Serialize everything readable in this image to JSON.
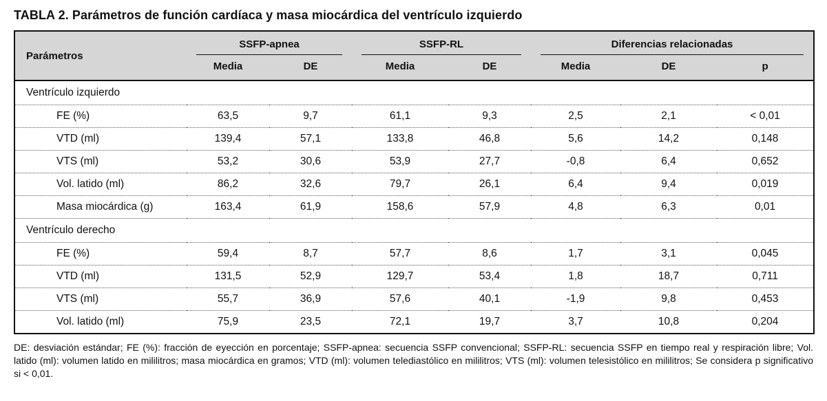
{
  "title": "TABLA 2. Parámetros de función cardíaca y masa miocárdica del ventrículo izquierdo",
  "colors": {
    "header_bg": "#d6d6d6",
    "border": "#111111",
    "text": "#111111"
  },
  "table": {
    "param_header": "Parámetros",
    "groups": [
      {
        "label": "SSFP-apnea",
        "cols": [
          "Media",
          "DE"
        ]
      },
      {
        "label": "SSFP-RL",
        "cols": [
          "Media",
          "DE"
        ]
      },
      {
        "label": "Diferencias relacionadas",
        "cols": [
          "Media",
          "DE",
          "p"
        ]
      }
    ],
    "sections": [
      {
        "label": "Ventrículo izquierdo",
        "rows": [
          {
            "param": "FE (%)",
            "values": [
              "63,5",
              "9,7",
              "61,1",
              "9,3",
              "2,5",
              "2,1",
              "< 0,01"
            ]
          },
          {
            "param": "VTD (ml)",
            "values": [
              "139,4",
              "57,1",
              "133,8",
              "46,8",
              "5,6",
              "14,2",
              "0,148"
            ]
          },
          {
            "param": "VTS (ml)",
            "values": [
              "53,2",
              "30,6",
              "53,9",
              "27,7",
              "-0,8",
              "6,4",
              "0,652"
            ]
          },
          {
            "param": "Vol. latido (ml)",
            "values": [
              "86,2",
              "32,6",
              "79,7",
              "26,1",
              "6,4",
              "9,4",
              "0,019"
            ]
          },
          {
            "param": "Masa miocárdica (g)",
            "values": [
              "163,4",
              "61,9",
              "158,6",
              "57,9",
              "4,8",
              "6,3",
              "0,01"
            ]
          }
        ]
      },
      {
        "label": "Ventrículo derecho",
        "rows": [
          {
            "param": "FE (%)",
            "values": [
              "59,4",
              "8,7",
              "57,7",
              "8,6",
              "1,7",
              "3,1",
              "0,045"
            ]
          },
          {
            "param": "VTD (ml)",
            "values": [
              "131,5",
              "52,9",
              "129,7",
              "53,4",
              "1,8",
              "18,7",
              "0,711"
            ]
          },
          {
            "param": "VTS (ml)",
            "values": [
              "55,7",
              "36,9",
              "57,6",
              "40,1",
              "-1,9",
              "9,8",
              "0,453"
            ]
          },
          {
            "param": "Vol. latido (ml)",
            "values": [
              "75,9",
              "23,5",
              "72,1",
              "19,7",
              "3,7",
              "10,8",
              "0,204"
            ]
          }
        ]
      }
    ]
  },
  "footnote": "DE: desviación estándar; FE (%): fracción de eyección en porcentaje; SSFP-apnea: secuencia SSFP convencional; SSFP-RL: secuencia SSFP en tiempo real y respiración libre; Vol. latido (ml): volumen latido en mililitros; masa miocárdica en gramos; VTD (ml): volumen telediastólico en mililitros; VTS (ml): volumen telesistólico en mililitros; Se considera p significativo si < 0,01."
}
